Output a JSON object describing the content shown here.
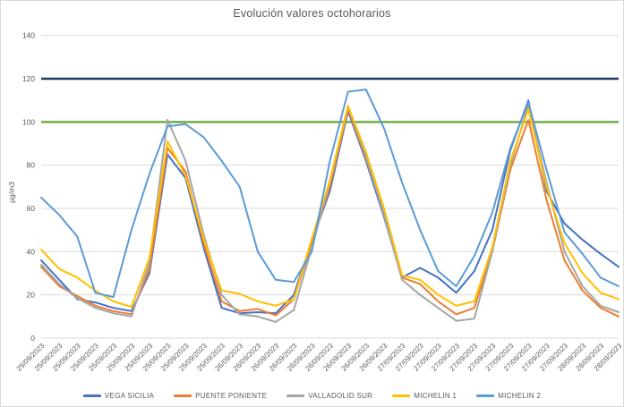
{
  "title": "Evolución valores octohorarios",
  "y_axis": {
    "label": "µg/m3",
    "min": 0,
    "max": 140,
    "step": 20
  },
  "colors": {
    "grid": "#d9d9d9",
    "text": "#595959",
    "border": "#d9d9d9",
    "background": "#ffffff",
    "limit_high": "#1f3864",
    "limit_target": "#70ad47"
  },
  "chart_data": {
    "type": "line",
    "title": "Evolución valores octohorarios",
    "xlabel": "",
    "ylabel": "µg/m3",
    "ylim": [
      0,
      140
    ],
    "ytick_step": 20,
    "grid": true,
    "legend_position": "bottom",
    "x_labels": [
      "25/09/2023",
      "25/09/2023",
      "25/09/2023",
      "25/09/2023",
      "25/09/2023",
      "25/09/2023",
      "25/09/2023",
      "25/09/2023",
      "25/09/2023",
      "25/09/2023",
      "25/09/2023",
      "26/09/2023",
      "26/09/2023",
      "26/09/2023",
      "26/09/2023",
      "26/09/2023",
      "26/09/2023",
      "26/09/2023",
      "26/09/2023",
      "26/09/2023",
      "27/09/2023",
      "27/09/2023",
      "27/09/2023",
      "27/09/2023",
      "27/09/2023",
      "27/09/2023",
      "27/09/2023",
      "27/09/2023",
      "27/09/2023",
      "27/09/2023",
      "28/09/2023",
      "28/09/2023",
      "28/09/2023"
    ],
    "ref_lines": [
      {
        "name": "limit-120",
        "value": 120,
        "color": "#1f3864"
      },
      {
        "name": "limit-100",
        "value": 100,
        "color": "#70ad47"
      }
    ],
    "series": [
      {
        "name": "VEGA SICILIA",
        "color": "#4472c4",
        "values": [
          36,
          27,
          18,
          16.5,
          14,
          12.5,
          30,
          85,
          74,
          42,
          14,
          11.5,
          12,
          11.5,
          20,
          45,
          68,
          105,
          82,
          56,
          28,
          32.5,
          28,
          21,
          31,
          50,
          87,
          110,
          68,
          53,
          45.5,
          39,
          33
        ]
      },
      {
        "name": "PUENTE PONIENTE",
        "color": "#ed7d31",
        "values": [
          33,
          24,
          19.5,
          15,
          12.5,
          11,
          32,
          88,
          77,
          44,
          17,
          12.5,
          13.5,
          10.5,
          18,
          44,
          70,
          106,
          83,
          58,
          28,
          25,
          17,
          11,
          14,
          40,
          78,
          101,
          64,
          36,
          22,
          14,
          10
        ]
      },
      {
        "name": "VALLADOLID SUR",
        "color": "#a5a5a5",
        "values": [
          34,
          25,
          18.5,
          14,
          11.5,
          10,
          35,
          101,
          82,
          48,
          20,
          11,
          10,
          7.5,
          13,
          42,
          72,
          107,
          84,
          57,
          27,
          20,
          14,
          8,
          9,
          40,
          80,
          108,
          72,
          40,
          24,
          15,
          12
        ]
      },
      {
        "name": "MICHELIN 1",
        "color": "#ffc000",
        "values": [
          41,
          32,
          28,
          22,
          17,
          14.5,
          37,
          91,
          75,
          46,
          22,
          20.5,
          17,
          15,
          18,
          46,
          73,
          107.5,
          86,
          60,
          29,
          27,
          20,
          15,
          17,
          42,
          82,
          106,
          70,
          44,
          30,
          21,
          18
        ]
      },
      {
        "name": "MICHELIN 2",
        "color": "#5b9bd5",
        "values": [
          65,
          57,
          47,
          21,
          19,
          50,
          76,
          98,
          99,
          93,
          82,
          70,
          40,
          27,
          26,
          40,
          82,
          114,
          115,
          97,
          72,
          50,
          31,
          24,
          38,
          58,
          88,
          109,
          78,
          49,
          39,
          28,
          24
        ]
      }
    ]
  }
}
